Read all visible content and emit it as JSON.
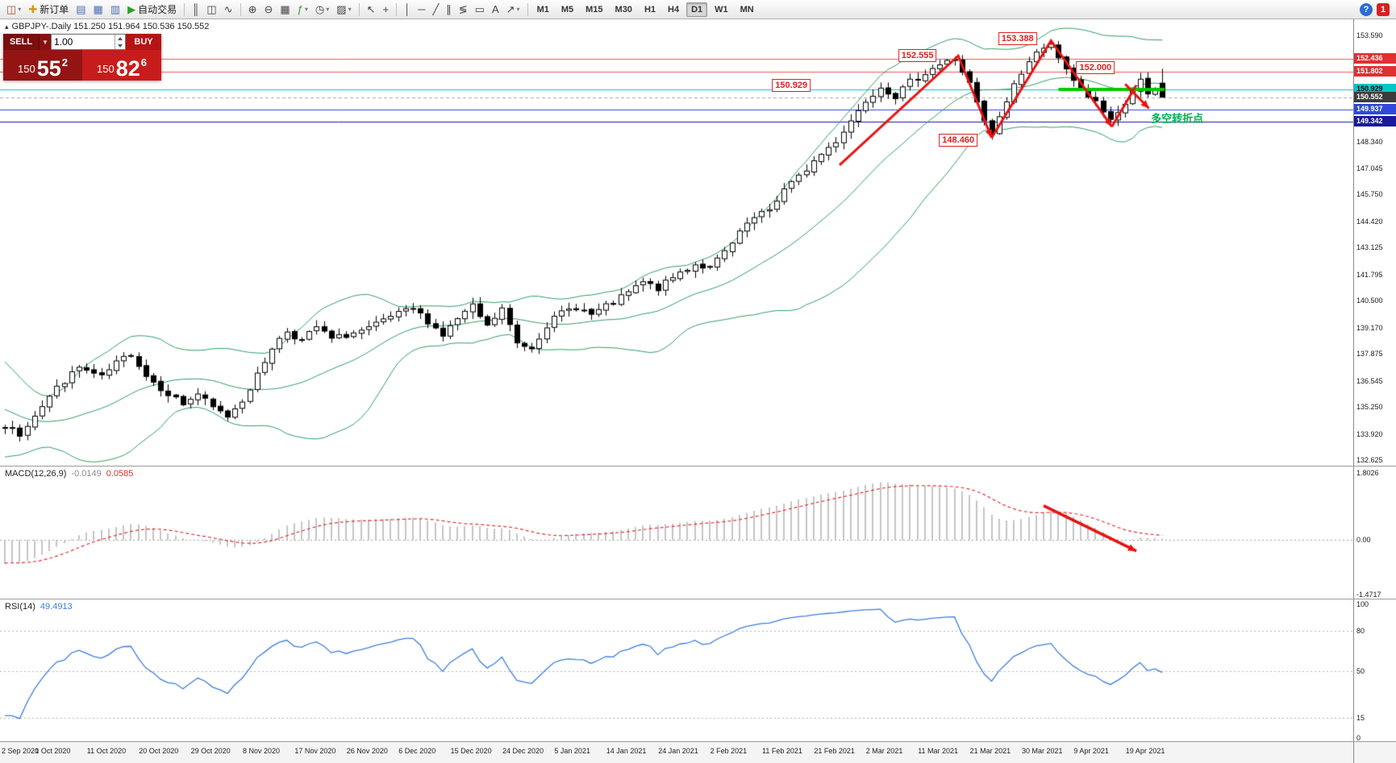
{
  "toolbar": {
    "items": [
      {
        "name": "new-chart-button",
        "glyph": "◫",
        "color": "#b05030",
        "dropdown": true
      },
      {
        "name": "new-order-button",
        "glyph": "✚",
        "color": "#d39b1a",
        "label": "新订单"
      },
      {
        "name": "market-watch-button",
        "glyph": "▤",
        "color": "#4a6fb5"
      },
      {
        "name": "data-window-button",
        "glyph": "▦",
        "color": "#4a6fb5"
      },
      {
        "name": "terminal-button",
        "glyph": "▥",
        "color": "#4a6fb5"
      },
      {
        "name": "autotrading-button",
        "glyph": "▶",
        "color": "#2ca12c",
        "label": "自动交易"
      },
      {
        "sep": true
      },
      {
        "name": "bar-chart-button",
        "glyph": "║"
      },
      {
        "name": "candlestick-chart-button",
        "glyph": "◫"
      },
      {
        "name": "line-chart-button",
        "glyph": "∿"
      },
      {
        "sep": true
      },
      {
        "name": "zoom-in-button",
        "glyph": "⊕"
      },
      {
        "name": "zoom-out-button",
        "glyph": "⊖"
      },
      {
        "name": "tile-windows-button",
        "glyph": "▦"
      },
      {
        "name": "indicators-button",
        "glyph": "ƒ",
        "color": "#2ca12c",
        "dropdown": true
      },
      {
        "name": "periods-button",
        "glyph": "◷",
        "dropdown": true
      },
      {
        "name": "templates-button",
        "glyph": "▨",
        "dropdown": true
      },
      {
        "sep": true
      },
      {
        "name": "cursor-button",
        "glyph": "↖"
      },
      {
        "name": "crosshair-button",
        "glyph": "+"
      },
      {
        "sep": true
      },
      {
        "name": "vertical-line-button",
        "glyph": "│"
      },
      {
        "name": "horizontal-line-button",
        "glyph": "─"
      },
      {
        "name": "trendline-button",
        "glyph": "╱"
      },
      {
        "name": "channel-button",
        "glyph": "∥"
      },
      {
        "name": "fibonacci-button",
        "glyph": "≶"
      },
      {
        "name": "shapes-button",
        "glyph": "▭"
      },
      {
        "name": "text-button",
        "glyph": "A"
      },
      {
        "name": "arrows-button",
        "glyph": "↗",
        "dropdown": true
      },
      {
        "sep": true
      }
    ],
    "timeframes": [
      "M1",
      "M5",
      "M15",
      "M30",
      "H1",
      "H4",
      "D1",
      "W1",
      "MN"
    ],
    "active_timeframe": "D1",
    "right": [
      {
        "name": "help-icon",
        "glyph": "?"
      },
      {
        "name": "notifications-badge",
        "glyph": "1"
      }
    ]
  },
  "chart": {
    "collapse_glyph": "▴",
    "header_text": "GBPJPY-.Daily  151.250 151.964 150.536 150.552"
  },
  "trade": {
    "sell_label": "SELL",
    "buy_label": "BUY",
    "dropdown_glyph": "▼",
    "volume": "1.00",
    "sell": {
      "big": "150",
      "pips": "55",
      "sup": "2"
    },
    "buy": {
      "big": "150",
      "pips": "82",
      "sup": "6"
    }
  },
  "chart_data": {
    "type": "candlestick",
    "symbol": "GBPJPY-",
    "timeframe": "Daily",
    "seed": 7,
    "bar_count": 157,
    "bars_per_label": 7,
    "price_range": [
      132.35,
      154.4
    ],
    "x_labels": [
      "2 Sep 2020",
      "1 Oct 2020",
      "11 Oct 2020",
      "20 Oct 2020",
      "29 Oct 2020",
      "8 Nov 2020",
      "17 Nov 2020",
      "26 Nov 2020",
      "6 Dec 2020",
      "15 Dec 2020",
      "24 Dec 2020",
      "5 Jan 2021",
      "14 Jan 2021",
      "24 Jan 2021",
      "2 Feb 2021",
      "11 Feb 2021",
      "21 Feb 2021",
      "2 Mar 2021",
      "11 Mar 2021",
      "21 Mar 2021",
      "30 Mar 2021",
      "9 Apr 2021",
      "19 Apr 2021"
    ],
    "y_ticks": [
      "153.590",
      "148.340",
      "147.045",
      "145.750",
      "144.420",
      "143.125",
      "141.795",
      "140.500",
      "139.170",
      "137.875",
      "136.545",
      "135.250",
      "133.920",
      "132.625"
    ],
    "price_tags": [
      {
        "text": "152.436",
        "price": 152.436,
        "bg": "#e03030",
        "fg": "#ffffff"
      },
      {
        "text": "151.802",
        "price": 151.802,
        "bg": "#e03030",
        "fg": "#ffffff"
      },
      {
        "text": "150.929",
        "price": 150.929,
        "bg": "#00c8c8",
        "fg": "#000000"
      },
      {
        "text": "150.552",
        "price": 150.552,
        "bg": "#3c3c3c",
        "fg": "#ffffff"
      },
      {
        "text": "149.937",
        "price": 149.937,
        "bg": "#3048d8",
        "fg": "#ffffff"
      },
      {
        "text": "149.342",
        "price": 149.342,
        "bg": "#1818a0",
        "fg": "#ffffff"
      }
    ],
    "h_lines": [
      {
        "price": 152.436,
        "color": "#ff5050",
        "dash": false
      },
      {
        "price": 151.802,
        "color": "#ff5050",
        "dash": false
      },
      {
        "price": 150.929,
        "color": "#00c8c8",
        "dash": false
      },
      {
        "price": 150.552,
        "color": "#aaaaaa",
        "dash": true
      },
      {
        "price": 149.937,
        "color": "#3048d8",
        "dash": false
      },
      {
        "price": 149.342,
        "color": "#1818a0",
        "dash": false
      }
    ],
    "green_segment": {
      "price": 150.94,
      "from_bar": 142,
      "to_bar": 156.3,
      "color": "#00c800",
      "width": 4
    },
    "history_anchors": [
      [
        -20,
        137.8
      ],
      [
        -15,
        136.2
      ],
      [
        -10,
        134.9
      ],
      [
        -5,
        134.0
      ],
      [
        -2,
        133.7
      ],
      [
        -1,
        134.0
      ]
    ],
    "close_anchors": [
      [
        0,
        134.3
      ],
      [
        2,
        133.9
      ],
      [
        4,
        134.9
      ],
      [
        7,
        136.2
      ],
      [
        10,
        137.2
      ],
      [
        13,
        136.7
      ],
      [
        15,
        137.4
      ],
      [
        17,
        137.9
      ],
      [
        19,
        136.8
      ],
      [
        21,
        136.2
      ],
      [
        24,
        135.4
      ],
      [
        26,
        135.9
      ],
      [
        28,
        135.2
      ],
      [
        30,
        134.8
      ],
      [
        32,
        135.6
      ],
      [
        34,
        136.8
      ],
      [
        36,
        138.2
      ],
      [
        38,
        139.0
      ],
      [
        40,
        138.5
      ],
      [
        42,
        139.2
      ],
      [
        44,
        138.6
      ],
      [
        47,
        138.9
      ],
      [
        49,
        139.1
      ],
      [
        52,
        139.7
      ],
      [
        55,
        140.1
      ],
      [
        57,
        139.5
      ],
      [
        59,
        138.8
      ],
      [
        61,
        139.6
      ],
      [
        63,
        140.2
      ],
      [
        65,
        139.2
      ],
      [
        67,
        140.1
      ],
      [
        69,
        138.4
      ],
      [
        71,
        138.2
      ],
      [
        73,
        139.3
      ],
      [
        75,
        139.9
      ],
      [
        77,
        140.2
      ],
      [
        79,
        139.8
      ],
      [
        82,
        140.4
      ],
      [
        84,
        140.9
      ],
      [
        86,
        141.4
      ],
      [
        88,
        141.1
      ],
      [
        91,
        141.9
      ],
      [
        93,
        142.3
      ],
      [
        95,
        142.1
      ],
      [
        98,
        143.3
      ],
      [
        100,
        144.3
      ],
      [
        103,
        145.0
      ],
      [
        105,
        146.0
      ],
      [
        107,
        146.6
      ],
      [
        109,
        147.4
      ],
      [
        112,
        148.4
      ],
      [
        114,
        149.4
      ],
      [
        116,
        150.4
      ],
      [
        118,
        151.1
      ],
      [
        120,
        150.6
      ],
      [
        122,
        151.3
      ],
      [
        125,
        152.0
      ],
      [
        128,
        152.45
      ],
      [
        130,
        151.2
      ],
      [
        132,
        149.3
      ],
      [
        133,
        148.7
      ],
      [
        134,
        149.5
      ],
      [
        136,
        151.2
      ],
      [
        138,
        152.3
      ],
      [
        140,
        153.1
      ],
      [
        141,
        153.25
      ],
      [
        142,
        152.4
      ],
      [
        144,
        151.3
      ],
      [
        146,
        150.6
      ],
      [
        148,
        149.9
      ],
      [
        149,
        149.5
      ],
      [
        151,
        150.1
      ],
      [
        152,
        150.9
      ],
      [
        153,
        151.3
      ],
      [
        154,
        150.7
      ],
      [
        155,
        150.9
      ],
      [
        156,
        150.552
      ]
    ],
    "extremes": [
      {
        "bar": 128,
        "high": 152.555
      },
      {
        "bar": 133,
        "low": 148.46
      },
      {
        "bar": 141,
        "high": 153.388
      }
    ],
    "last_bar_ohlc": [
      151.25,
      151.964,
      150.536,
      150.552
    ],
    "bollinger": {
      "period": 20,
      "dev": 2,
      "color": "#2f9e63"
    },
    "candle_colors": {
      "up": "#ffffff",
      "down": "#000000",
      "outline": "#000000"
    },
    "annotations": [
      {
        "text": "150.929",
        "bar": 106,
        "price": 151.15,
        "type": "price-label"
      },
      {
        "text": "152.555",
        "bar": 123,
        "price": 152.6,
        "type": "price-label"
      },
      {
        "text": "148.460",
        "bar": 128.5,
        "price": 148.42,
        "type": "price-label"
      },
      {
        "text": "153.388",
        "bar": 136.5,
        "price": 153.45,
        "type": "price-label"
      },
      {
        "text": "152.000",
        "bar": 147,
        "price": 152.0,
        "type": "price-label"
      },
      {
        "text": "多空转折点",
        "bar": 158,
        "price": 149.55,
        "type": "note"
      }
    ],
    "arrows": [
      {
        "points": [
          [
            112.5,
            147.2
          ],
          [
            128.5,
            152.6
          ],
          [
            133,
            148.55
          ]
        ],
        "head": true
      },
      {
        "points": [
          [
            133,
            148.55
          ],
          [
            141,
            153.35
          ],
          [
            149.2,
            149.1
          ]
        ],
        "head": true
      },
      {
        "points": [
          [
            149.2,
            149.1
          ],
          [
            152.5,
            151.15
          ]
        ],
        "head": false
      },
      {
        "points": [
          [
            151,
            151.2
          ],
          [
            154.2,
            150.0
          ]
        ],
        "head": true
      }
    ],
    "arrow_color": "#e81212",
    "note_color": "#00b050"
  },
  "macd": {
    "label": "MACD(12,26,9)",
    "main": "-0.0149",
    "signal": "0.0585",
    "range": [
      -1.6,
      1.95
    ],
    "ticks": [
      {
        "v": 1.8026,
        "t": "1.8026"
      },
      {
        "v": 0,
        "t": "0.00"
      },
      {
        "v": -1.4717,
        "t": "-1.4717"
      }
    ],
    "hist_color": "#c4c4c4",
    "signal_color": "#e03030",
    "arrow": {
      "points": [
        [
          140,
          0.92
        ],
        [
          152.5,
          -0.3
        ]
      ]
    }
  },
  "rsi": {
    "label": "RSI(14)",
    "value": "49.4913",
    "color": "#3d7edb",
    "levels": [
      80,
      50,
      15
    ],
    "ticks": [
      {
        "v": 100,
        "t": "100"
      },
      {
        "v": 80,
        "t": "80"
      },
      {
        "v": 50,
        "t": "50"
      },
      {
        "v": 15,
        "t": "15"
      },
      {
        "v": 0,
        "t": "0"
      }
    ]
  }
}
